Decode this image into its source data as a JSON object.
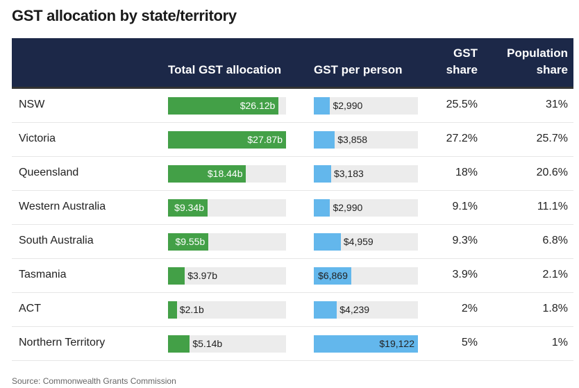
{
  "title": "GST allocation by state/territory",
  "colors": {
    "header": "#1c2848",
    "total_bar": "#43a047",
    "per_person_bar": "#63b7ec",
    "track": "#ececec"
  },
  "headers": {
    "total": "Total GST allocation",
    "per_person": "GST per person",
    "gst_share_1": "GST",
    "gst_share_2": "share",
    "pop_share_1": "Population",
    "pop_share_2": "share"
  },
  "source": "Source: Commonwealth Grants Commission",
  "chart_data": {
    "type": "table",
    "columns": [
      "",
      "Total GST allocation",
      "GST per person",
      "GST share",
      "Population share"
    ],
    "rows": [
      {
        "state": "NSW",
        "total": 26.12,
        "total_label": "$26.12b",
        "per_person": 2990,
        "per_person_label": "$2,990",
        "gst_share": "25.5%",
        "pop_share": "31%"
      },
      {
        "state": "Victoria",
        "total": 27.87,
        "total_label": "$27.87b",
        "per_person": 3858,
        "per_person_label": "$3,858",
        "gst_share": "27.2%",
        "pop_share": "25.7%"
      },
      {
        "state": "Queensland",
        "total": 18.44,
        "total_label": "$18.44b",
        "per_person": 3183,
        "per_person_label": "$3,183",
        "gst_share": "18%",
        "pop_share": "20.6%"
      },
      {
        "state": "Western Australia",
        "total": 9.34,
        "total_label": "$9.34b",
        "per_person": 2990,
        "per_person_label": "$2,990",
        "gst_share": "9.1%",
        "pop_share": "11.1%"
      },
      {
        "state": "South Australia",
        "total": 9.55,
        "total_label": "$9.55b",
        "per_person": 4959,
        "per_person_label": "$4,959",
        "gst_share": "9.3%",
        "pop_share": "6.8%"
      },
      {
        "state": "Tasmania",
        "total": 3.97,
        "total_label": "$3.97b",
        "per_person": 6869,
        "per_person_label": "$6,869",
        "gst_share": "3.9%",
        "pop_share": "2.1%"
      },
      {
        "state": "ACT",
        "total": 2.1,
        "total_label": "$2.1b",
        "per_person": 4239,
        "per_person_label": "$4,239",
        "gst_share": "2%",
        "pop_share": "1.8%"
      },
      {
        "state": "Northern Territory",
        "total": 5.14,
        "total_label": "$5.14b",
        "per_person": 19122,
        "per_person_label": "$19,122",
        "gst_share": "5%",
        "pop_share": "1%"
      }
    ]
  }
}
